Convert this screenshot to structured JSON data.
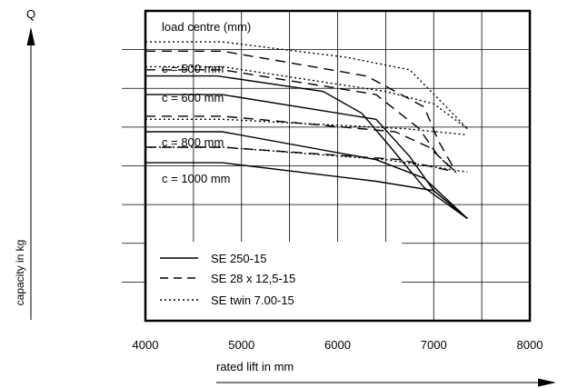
{
  "chart_data": {
    "type": "line",
    "title": "",
    "xlabel": "rated lift in mm",
    "ylabel": "capacity in kg",
    "y_axis_symbol": "Q",
    "xlim": [
      4000,
      8000
    ],
    "x_ticks": [
      "4000",
      "5000",
      "6000",
      "7000",
      "8000"
    ],
    "grid": true,
    "y_tick_labels_shown": false,
    "load_centre_label": "load centre (mm)",
    "load_centres": [
      "c = 500 mm",
      "c = 600 mm",
      "c = 800 mm",
      "c = 1000 mm"
    ],
    "legend_placement": "bottom-left",
    "legend": [
      {
        "label": "SE 250-15",
        "style": "solid"
      },
      {
        "label": "SE 28 x 12,5-15",
        "style": "dashed"
      },
      {
        "label": "SE twin 7.00-15",
        "style": "dotted"
      }
    ],
    "series": [
      {
        "tyre": "SE 250-15",
        "load_centre": "c = 500 mm",
        "style": "solid",
        "points": [
          [
            4000,
            0.79
          ],
          [
            4750,
            0.79
          ],
          [
            5850,
            0.74
          ],
          [
            6250,
            0.67
          ],
          [
            6550,
            0.56
          ],
          [
            6900,
            0.43
          ],
          [
            7350,
            0.33
          ]
        ]
      },
      {
        "tyre": "SE 250-15",
        "load_centre": "c = 600 mm",
        "style": "solid",
        "points": [
          [
            4000,
            0.73
          ],
          [
            4800,
            0.73
          ],
          [
            6400,
            0.65
          ],
          [
            6750,
            0.53
          ],
          [
            7000,
            0.42
          ],
          [
            7350,
            0.33
          ]
        ]
      },
      {
        "tyre": "SE 250-15",
        "load_centre": "c = 800 mm",
        "style": "solid",
        "points": [
          [
            4000,
            0.61
          ],
          [
            4800,
            0.61
          ],
          [
            6400,
            0.52
          ],
          [
            6900,
            0.46
          ],
          [
            7350,
            0.33
          ]
        ]
      },
      {
        "tyre": "SE 250-15",
        "load_centre": "c = 1000 mm",
        "style": "solid",
        "points": [
          [
            4000,
            0.51
          ],
          [
            4800,
            0.51
          ],
          [
            6400,
            0.45
          ],
          [
            7000,
            0.42
          ],
          [
            7350,
            0.33
          ]
        ]
      },
      {
        "tyre": "SE 28 x 12,5-15",
        "load_centre": "c = 500 mm",
        "style": "dashed",
        "points": [
          [
            4000,
            0.87
          ],
          [
            4800,
            0.87
          ],
          [
            6300,
            0.79
          ],
          [
            6900,
            0.69
          ],
          [
            7050,
            0.58
          ],
          [
            7230,
            0.48
          ]
        ]
      },
      {
        "tyre": "SE 28 x 12,5-15",
        "load_centre": "c = 600 mm",
        "style": "dashed",
        "points": [
          [
            4000,
            0.81
          ],
          [
            4800,
            0.81
          ],
          [
            6400,
            0.73
          ],
          [
            6850,
            0.62
          ],
          [
            7050,
            0.53
          ],
          [
            7230,
            0.48
          ]
        ]
      },
      {
        "tyre": "SE 28 x 12,5-15",
        "load_centre": "c = 800 mm",
        "style": "dashed",
        "points": [
          [
            4000,
            0.66
          ],
          [
            4800,
            0.66
          ],
          [
            6600,
            0.61
          ],
          [
            6950,
            0.56
          ],
          [
            7230,
            0.48
          ]
        ]
      },
      {
        "tyre": "SE 28 x 12,5-15",
        "load_centre": "c = 1000 mm",
        "style": "dashed",
        "points": [
          [
            4000,
            0.56
          ],
          [
            4800,
            0.56
          ],
          [
            6650,
            0.52
          ],
          [
            7230,
            0.48
          ]
        ]
      },
      {
        "tyre": "SE twin 7.00-15",
        "load_centre": "c = 500 mm",
        "style": "dotted",
        "points": [
          [
            4000,
            0.9
          ],
          [
            4800,
            0.9
          ],
          [
            6100,
            0.85
          ],
          [
            6750,
            0.81
          ],
          [
            7100,
            0.7
          ],
          [
            7350,
            0.62
          ]
        ]
      },
      {
        "tyre": "SE twin 7.00-15",
        "load_centre": "c = 600 mm",
        "style": "dotted",
        "points": [
          [
            4000,
            0.82
          ],
          [
            4800,
            0.82
          ],
          [
            6500,
            0.74
          ],
          [
            7000,
            0.7
          ],
          [
            7350,
            0.62
          ]
        ]
      },
      {
        "tyre": "SE twin 7.00-15",
        "load_centre": "c = 800 mm",
        "style": "dotted",
        "points": [
          [
            4000,
            0.65
          ],
          [
            4800,
            0.65
          ],
          [
            6700,
            0.62
          ],
          [
            7350,
            0.6
          ]
        ]
      },
      {
        "tyre": "SE twin 7.00-15",
        "load_centre": "c = 1000 mm",
        "style": "dotted",
        "points": [
          [
            4000,
            0.56
          ],
          [
            4800,
            0.56
          ],
          [
            6500,
            0.52
          ],
          [
            7350,
            0.48
          ]
        ]
      }
    ]
  }
}
